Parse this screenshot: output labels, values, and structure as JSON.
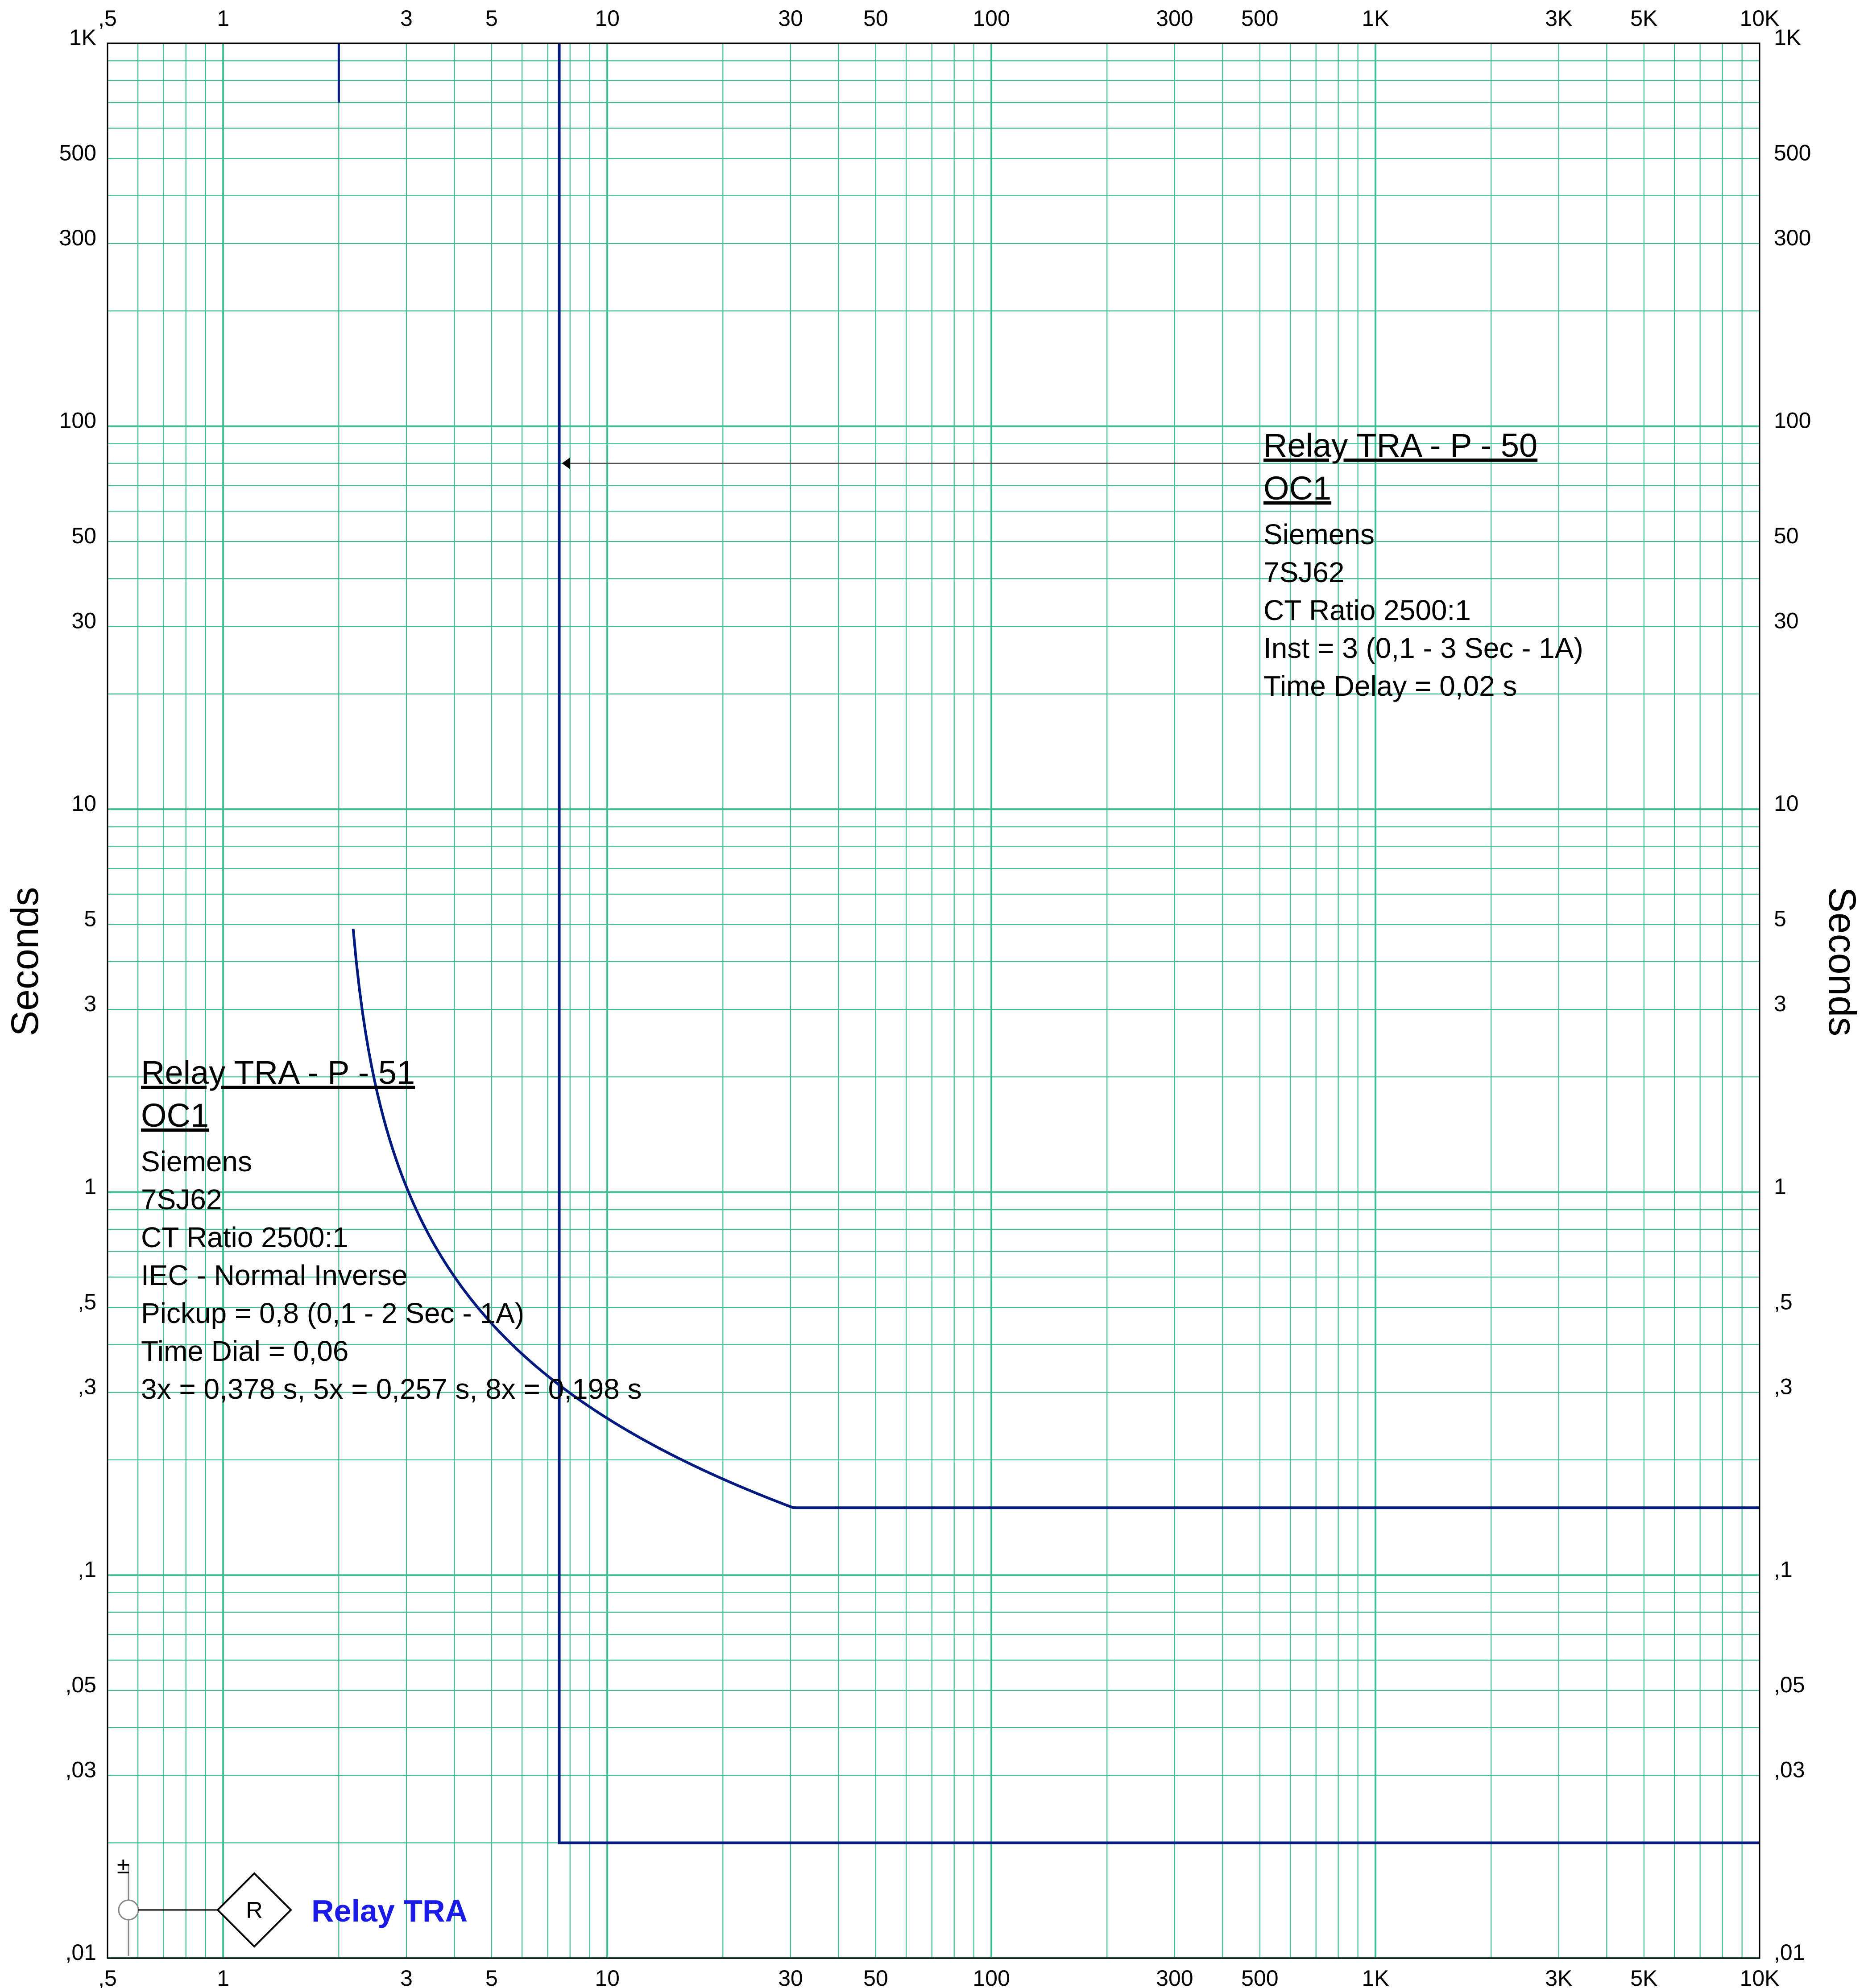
{
  "chart_data": {
    "type": "line",
    "scale": {
      "x": "log",
      "y": "log"
    },
    "xlim": [
      0.5,
      10000
    ],
    "ylim": [
      0.01,
      1000
    ],
    "grid": true,
    "colors": {
      "grid": "#3fbf8f",
      "curve": "#001a80",
      "legend_label": "#1a1ae6",
      "frame": "#000000"
    },
    "x_ticks": [
      {
        "v": 0.5,
        "label": ",5"
      },
      {
        "v": 1,
        "label": "1"
      },
      {
        "v": 3,
        "label": "3"
      },
      {
        "v": 5,
        "label": "5"
      },
      {
        "v": 10,
        "label": "10"
      },
      {
        "v": 30,
        "label": "30"
      },
      {
        "v": 50,
        "label": "50"
      },
      {
        "v": 100,
        "label": "100"
      },
      {
        "v": 300,
        "label": "300"
      },
      {
        "v": 500,
        "label": "500"
      },
      {
        "v": 1000,
        "label": "1K"
      },
      {
        "v": 3000,
        "label": "3K"
      },
      {
        "v": 5000,
        "label": "5K"
      },
      {
        "v": 10000,
        "label": "10K"
      }
    ],
    "y_ticks": [
      {
        "v": 1000,
        "label": "1K"
      },
      {
        "v": 500,
        "label": "500"
      },
      {
        "v": 300,
        "label": "300"
      },
      {
        "v": 100,
        "label": "100"
      },
      {
        "v": 50,
        "label": "50"
      },
      {
        "v": 30,
        "label": "30"
      },
      {
        "v": 10,
        "label": "10"
      },
      {
        "v": 5,
        "label": "5"
      },
      {
        "v": 3,
        "label": "3"
      },
      {
        "v": 1,
        "label": "1"
      },
      {
        "v": 0.5,
        "label": ",5"
      },
      {
        "v": 0.3,
        "label": ",3"
      },
      {
        "v": 0.1,
        "label": ",1"
      },
      {
        "v": 0.05,
        "label": ",05"
      },
      {
        "v": 0.03,
        "label": ",03"
      },
      {
        "v": 0.01,
        "label": ",01"
      }
    ],
    "ylabel": "Seconds",
    "xlabel": "",
    "series": [
      {
        "name": "Relay TRA - P - 51",
        "kind": "IEC normal inverse",
        "pickup_x": 2.0,
        "tms": 0.06,
        "x_start": 2.18,
        "x_end": 40,
        "t_floor": 0.15,
        "x_floor_end": 10000
      },
      {
        "name": "Relay TRA - P - 50",
        "kind": "definite time",
        "pickup_x": 7.5,
        "t_delay": 0.02,
        "x_end": 10000
      }
    ],
    "markers": [
      {
        "kind": "pickup tick",
        "x": 2.0,
        "y_from": 700,
        "y_to": 1000
      }
    ],
    "annotations": [
      {
        "id": "ann50",
        "title": "Relay TRA - P - 50",
        "subtitle": "OC1",
        "lines": [
          "Siemens",
          "7SJ62",
          "CT Ratio 2500:1",
          "Inst = 3 (0,1 - 3  Sec - 1A)",
          "Time Delay = 0,02 s"
        ],
        "leader_target": {
          "x": 7.5,
          "y": 80
        }
      },
      {
        "id": "ann51",
        "title": "Relay TRA - P - 51",
        "subtitle": "OC1",
        "lines": [
          "Siemens",
          "7SJ62",
          "CT Ratio 2500:1",
          "IEC - Normal Inverse",
          "Pickup = 0,8 (0,1 - 2  Sec - 1A)",
          "Time Dial = 0,06",
          "3x = 0,378 s, 5x = 0,257 s, 8x = 0,198 s"
        ]
      }
    ],
    "legend": {
      "symbol": "R",
      "label": "Relay TRA",
      "marker": "±"
    }
  }
}
